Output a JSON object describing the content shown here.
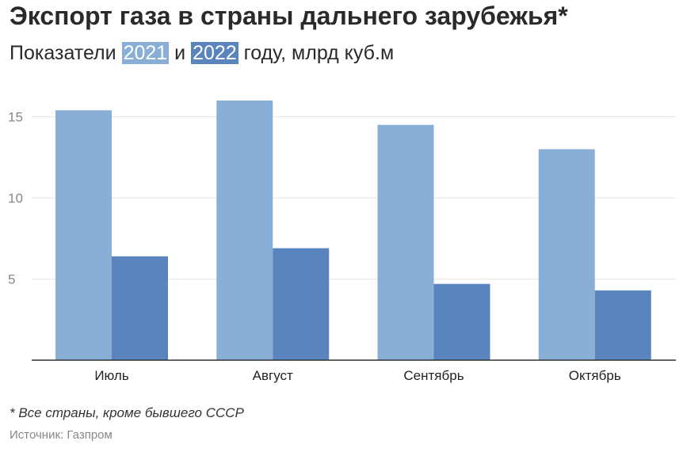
{
  "header": {
    "title": "Экспорт газа в страны дальнего зарубежья*",
    "subtitle_prefix": "Показатели",
    "subtitle_year1": "2021",
    "subtitle_and": "и",
    "subtitle_year2": "2022",
    "subtitle_suffix": "году, млрд куб.м"
  },
  "footer": {
    "footnote": "* Все страны, кроме бывшего СССР",
    "source": "Источник: Газпром"
  },
  "colors": {
    "series_2021": "#8aafd6",
    "series_2022": "#5a84bd",
    "grid": "#e6e6e6",
    "axis": "#333333"
  },
  "chart_data": {
    "type": "bar",
    "title": "Экспорт газа в страны дальнего зарубежья*",
    "subtitle": "Показатели 2021 и 2022 году, млрд куб.м",
    "xlabel": "",
    "ylabel": "",
    "categories": [
      "Июль",
      "Август",
      "Сентябрь",
      "Октябрь"
    ],
    "series": [
      {
        "name": "2021",
        "values": [
          15.4,
          16.0,
          14.5,
          13.0
        ]
      },
      {
        "name": "2022",
        "values": [
          6.4,
          6.9,
          4.7,
          4.3
        ]
      }
    ],
    "ylim": [
      0,
      16
    ],
    "yticks": [
      5,
      10,
      15
    ],
    "grid": true,
    "legend": "in subtitle"
  }
}
